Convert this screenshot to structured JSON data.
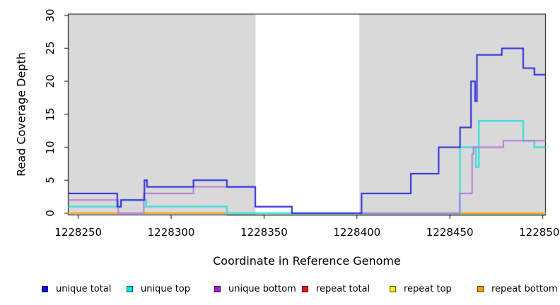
{
  "chart_data": {
    "type": "line",
    "step": true,
    "title": "",
    "xlabel": "Coordinate in Reference Genome",
    "ylabel": "Read Coverage Depth",
    "xlim": [
      1228244.6,
      1228501.5
    ],
    "ylim": [
      0,
      30
    ],
    "x_ticks": [
      1228250,
      1228300,
      1228350,
      1228400,
      1228450,
      1228500
    ],
    "y_ticks": [
      0,
      5,
      10,
      15,
      20,
      25,
      30
    ],
    "grid": false,
    "shade_color": "#d9d9d9",
    "shaded_regions": [
      [
        1228244.6,
        1228345.4
      ],
      [
        1228401.3,
        1228501.5
      ]
    ],
    "baseline_artifact": {
      "x0": 1228330,
      "x1": 1228501.5,
      "color": "#8ccc8c"
    },
    "draw_order": [
      "repeat total",
      "repeat top",
      "repeat bottom",
      "unique top",
      "unique bottom",
      "unique total"
    ],
    "series": [
      {
        "name": "unique total",
        "color": "#2b2bd9",
        "line_width": 2.0,
        "points": [
          [
            1228244.6,
            3
          ],
          [
            1228271,
            1
          ],
          [
            1228273,
            2
          ],
          [
            1228285.6,
            5
          ],
          [
            1228287,
            4
          ],
          [
            1228312,
            5
          ],
          [
            1228330,
            4
          ],
          [
            1228345.3,
            1
          ],
          [
            1228365,
            0
          ],
          [
            1228402.5,
            3
          ],
          [
            1228429,
            6
          ],
          [
            1228444,
            10
          ],
          [
            1228455.5,
            13
          ],
          [
            1228461.4,
            20
          ],
          [
            1228463.6,
            17
          ],
          [
            1228464.6,
            24
          ],
          [
            1228478,
            25
          ],
          [
            1228489.5,
            22
          ],
          [
            1228495.5,
            21
          ]
        ]
      },
      {
        "name": "unique top",
        "color": "#3cdede",
        "line_width": 2.4,
        "points": [
          [
            1228244.6,
            1
          ],
          [
            1228273,
            2
          ],
          [
            1228286.5,
            1
          ],
          [
            1228330,
            0
          ],
          [
            1228455.5,
            10
          ],
          [
            1228464,
            7
          ],
          [
            1228465.6,
            14
          ],
          [
            1228489.5,
            11
          ],
          [
            1228495.5,
            10
          ]
        ]
      },
      {
        "name": "unique bottom",
        "color": "#b877de",
        "line_width": 1.9,
        "points": [
          [
            1228244.6,
            2
          ],
          [
            1228271.5,
            0
          ],
          [
            1228285.3,
            3
          ],
          [
            1228312,
            4
          ],
          [
            1228345.3,
            1
          ],
          [
            1228365,
            0
          ],
          [
            1228455.3,
            3
          ],
          [
            1228462,
            9
          ],
          [
            1228462.7,
            10
          ],
          [
            1228478.8,
            11
          ]
        ]
      },
      {
        "name": "repeat total",
        "color": "#e03030",
        "line_width": 1.9,
        "points": [
          [
            1228244.6,
            0
          ]
        ]
      },
      {
        "name": "repeat top",
        "color": "#e8e23a",
        "line_width": 1.9,
        "points": [
          [
            1228244.6,
            0
          ]
        ]
      },
      {
        "name": "repeat bottom",
        "color": "#ff9d0f",
        "line_width": 1.9,
        "points": [
          [
            1228244.6,
            0
          ]
        ]
      }
    ]
  },
  "legend": {
    "items": [
      {
        "label": "unique total",
        "color": "#0f0fe8"
      },
      {
        "label": "unique top",
        "color": "#00e8e8"
      },
      {
        "label": "unique bottom",
        "color": "#a21fd6"
      },
      {
        "label": "repeat total",
        "color": "#ee1414"
      },
      {
        "label": "repeat top",
        "color": "#f2ea10"
      },
      {
        "label": "repeat bottom",
        "color": "#ff9b06"
      }
    ]
  }
}
